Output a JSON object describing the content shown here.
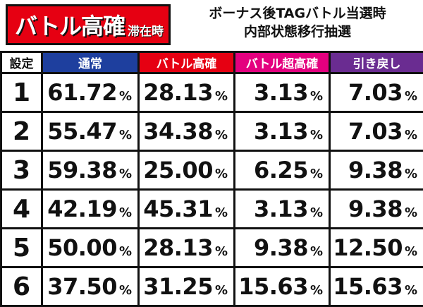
{
  "badge": {
    "main": "バトル高確",
    "sub": "滞在時"
  },
  "title": {
    "line1": "ボーナス後TAGバトル当選時",
    "line2": "内部状態移行抽選"
  },
  "table": {
    "headers": [
      {
        "label": "設定",
        "color": "#ffffff"
      },
      {
        "label": "通常",
        "color": "#1e3f9e"
      },
      {
        "label": "バトル高確",
        "color": "#e60012"
      },
      {
        "label": "バトル超高確",
        "color": "#e4007f"
      },
      {
        "label": "引き戻し",
        "color": "#6a2c91"
      }
    ],
    "percent_symbol": "%",
    "rows": [
      {
        "setting": "1",
        "values": [
          "61.72",
          "28.13",
          "3.13",
          "7.03"
        ]
      },
      {
        "setting": "2",
        "values": [
          "55.47",
          "34.38",
          "3.13",
          "7.03"
        ]
      },
      {
        "setting": "3",
        "values": [
          "59.38",
          "25.00",
          "6.25",
          "9.38"
        ]
      },
      {
        "setting": "4",
        "values": [
          "42.19",
          "45.31",
          "3.13",
          "9.38"
        ]
      },
      {
        "setting": "5",
        "values": [
          "50.00",
          "28.13",
          "9.38",
          "12.50"
        ]
      },
      {
        "setting": "6",
        "values": [
          "37.50",
          "31.25",
          "15.63",
          "15.63"
        ]
      }
    ]
  }
}
